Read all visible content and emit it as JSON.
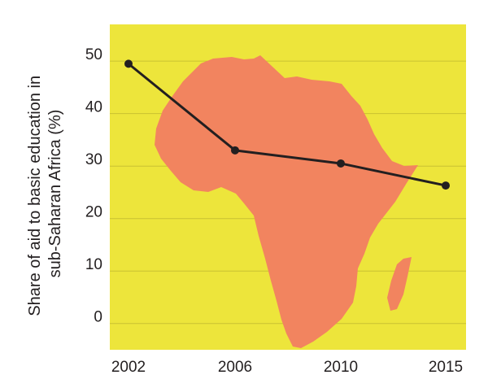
{
  "chart_data": {
    "type": "line",
    "title": "",
    "xlabel": "",
    "ylabel_lines": [
      "Share of aid to basic education in",
      "sub-Saharan Africa (%)"
    ],
    "x": [
      "2002",
      "2006",
      "2010",
      "2015"
    ],
    "series": [
      {
        "values": [
          49.5,
          33,
          30.5,
          26.3
        ]
      }
    ],
    "ylim": [
      -5,
      57
    ],
    "yticks": [
      0,
      10,
      20,
      30,
      40,
      50
    ],
    "grid": true,
    "background_image": "africa-map-silhouette",
    "colors": {
      "plot_background": "#ede53b",
      "map_fill": "#f2845f",
      "line": "#231f20",
      "gridline": "#c9c232",
      "text": "#231f20"
    }
  }
}
